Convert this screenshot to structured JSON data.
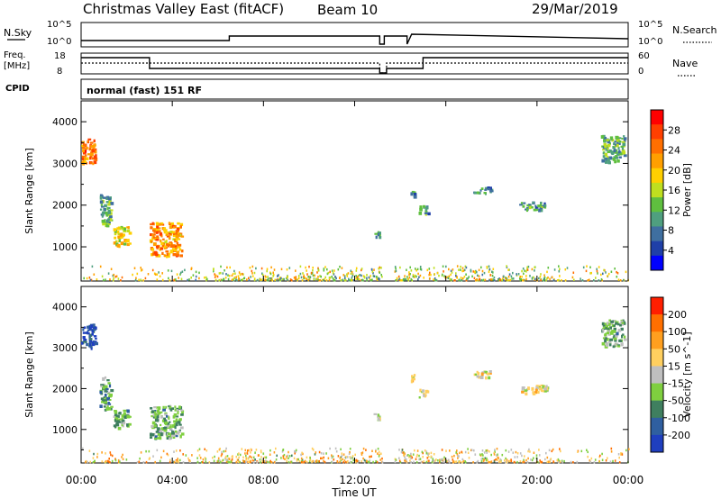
{
  "header": {
    "radar": "Christmas Valley East (fitACF)",
    "beam": "Beam 10",
    "date": "29/Mar/2019"
  },
  "param_panels": {
    "nsky_label": "N.Sky",
    "nsearch_label": "N.Search",
    "freq_label_1": "Freq.",
    "freq_label_2": "[MHz]",
    "nave_label": "Nave",
    "cpid_label": "CPID",
    "cpid_value": "normal (fast) 151 RF",
    "noise_ticks": [
      "10^5",
      "10^0"
    ],
    "freq_ticks": [
      "18",
      "8"
    ],
    "nave_ticks": [
      "60",
      "0"
    ]
  },
  "chart_data": [
    {
      "type": "heatmap",
      "title": "",
      "xlabel": "Time UT",
      "ylabel": "Slant Range [km]",
      "ylim": [
        180,
        4500
      ],
      "xlim": [
        0,
        24
      ],
      "y_ticks": [
        "4000",
        "3000",
        "2000",
        "1000"
      ],
      "x_ticks": [
        "00:00",
        "04:00",
        "08:00",
        "12:00",
        "16:00",
        "20:00",
        "00:00"
      ],
      "colorbar": {
        "label": "Power [dB]",
        "ticks": [
          "28",
          "24",
          "20",
          "16",
          "12",
          "8",
          "4"
        ],
        "colors": [
          "#0000ff",
          "#1f3fa8",
          "#3f6fa0",
          "#4f9f7f",
          "#5fbf3f",
          "#bfdf1f",
          "#ffcf00",
          "#ff9f00",
          "#ff6f00",
          "#ff3f00",
          "#ff0000"
        ]
      },
      "clusters": [
        {
          "t0": 0.0,
          "t1": 0.6,
          "r0": 3000,
          "r1": 3600,
          "level": 0.78
        },
        {
          "t0": 0.8,
          "t1": 1.3,
          "r0": 1500,
          "r1": 2300,
          "level": 0.35
        },
        {
          "t0": 1.4,
          "t1": 2.1,
          "r0": 1050,
          "r1": 1500,
          "level": 0.55
        },
        {
          "t0": 3.0,
          "t1": 4.4,
          "r0": 800,
          "r1": 1600,
          "level": 0.72
        },
        {
          "t0": 12.8,
          "t1": 13.1,
          "r0": 1250,
          "r1": 1400,
          "level": 0.3
        },
        {
          "t0": 14.4,
          "t1": 14.6,
          "r0": 2200,
          "r1": 2400,
          "level": 0.3
        },
        {
          "t0": 14.8,
          "t1": 15.2,
          "r0": 1800,
          "r1": 2000,
          "level": 0.3
        },
        {
          "t0": 17.2,
          "t1": 18.0,
          "r0": 2300,
          "r1": 2450,
          "level": 0.25
        },
        {
          "t0": 19.2,
          "t1": 20.4,
          "r0": 1900,
          "r1": 2100,
          "level": 0.3
        },
        {
          "t0": 22.8,
          "t1": 23.8,
          "r0": 3050,
          "r1": 3700,
          "level": 0.35
        }
      ],
      "ground_scatter_band": {
        "r0": 180,
        "r1": 520,
        "level": 0.5
      }
    },
    {
      "type": "heatmap",
      "title": "",
      "xlabel": "Time UT",
      "ylabel": "Slant Range [km]",
      "ylim": [
        180,
        4500
      ],
      "xlim": [
        0,
        24
      ],
      "y_ticks": [
        "4000",
        "3000",
        "2000",
        "1000"
      ],
      "x_ticks": [
        "00:00",
        "04:00",
        "08:00",
        "12:00",
        "16:00",
        "20:00",
        "00:00"
      ],
      "colorbar": {
        "label": "Velocity [m s^-1]",
        "ticks": [
          "200",
          "100",
          "50",
          "15",
          "-15",
          "-50",
          "-100",
          "-200"
        ],
        "colors": [
          "#1f3fbf",
          "#2f5fa0",
          "#3f7f5f",
          "#7fcf3f",
          "#bfbfbf",
          "#ffcf5f",
          "#ff9f1f",
          "#ff6f00",
          "#ff1f00"
        ]
      },
      "clusters": [
        {
          "t0": 0.0,
          "t1": 0.6,
          "r0": 3000,
          "r1": 3600,
          "level": 0.05
        },
        {
          "t0": 0.8,
          "t1": 1.3,
          "r0": 1500,
          "r1": 2300,
          "level": 0.3
        },
        {
          "t0": 1.4,
          "t1": 2.1,
          "r0": 1050,
          "r1": 1500,
          "level": 0.35
        },
        {
          "t0": 3.0,
          "t1": 4.4,
          "r0": 800,
          "r1": 1600,
          "level": 0.35
        },
        {
          "t0": 12.8,
          "t1": 13.1,
          "r0": 1250,
          "r1": 1400,
          "level": 0.5
        },
        {
          "t0": 14.4,
          "t1": 14.6,
          "r0": 2200,
          "r1": 2400,
          "level": 0.55
        },
        {
          "t0": 14.8,
          "t1": 15.2,
          "r0": 1800,
          "r1": 2000,
          "level": 0.5
        },
        {
          "t0": 17.2,
          "t1": 18.0,
          "r0": 2300,
          "r1": 2450,
          "level": 0.55
        },
        {
          "t0": 19.2,
          "t1": 20.4,
          "r0": 1900,
          "r1": 2100,
          "level": 0.55
        },
        {
          "t0": 22.8,
          "t1": 23.8,
          "r0": 3050,
          "r1": 3700,
          "level": 0.35
        }
      ],
      "ground_scatter_band": {
        "r0": 180,
        "r1": 520,
        "level": 0.6
      }
    }
  ]
}
